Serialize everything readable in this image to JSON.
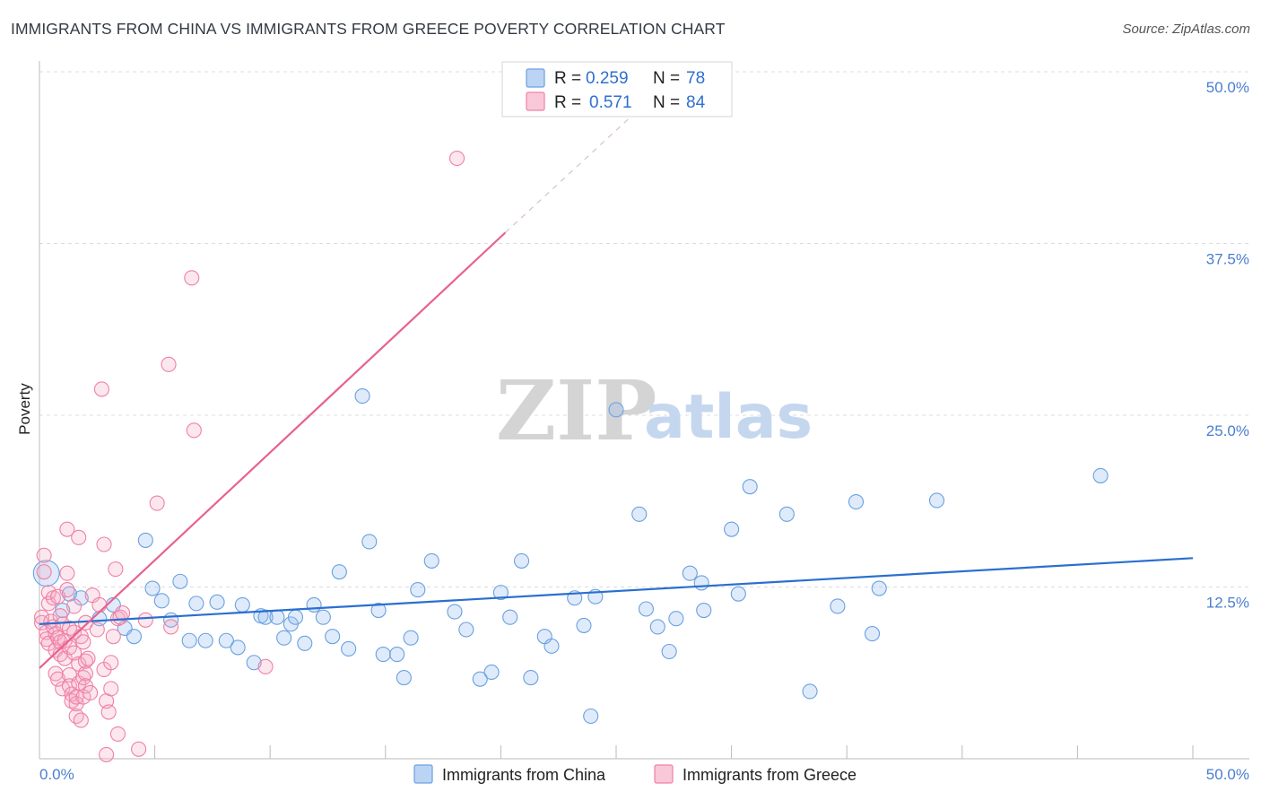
{
  "title": "IMMIGRANTS FROM CHINA VS IMMIGRANTS FROM GREECE POVERTY CORRELATION CHART",
  "source": "Source: ZipAtlas.com",
  "watermark": {
    "zip": "ZIP",
    "atlas": "atlas"
  },
  "colors": {
    "china": "#6aa0e0",
    "china_line": "#2a6fd0",
    "greece": "#f080a4",
    "greece_line": "#e8628c",
    "grid": "#dcdcdc",
    "axis_tick": "#4a7fd0"
  },
  "legend": {
    "r_label": "R =",
    "n_label": "N =",
    "china": {
      "r": "0.259",
      "n": "78"
    },
    "greece": {
      "r": "0.571",
      "n": "84"
    }
  },
  "bottom_legend": {
    "china": "Immigrants from China",
    "greece": "Immigrants from Greece"
  },
  "chart_data": {
    "type": "scatter",
    "title": "IMMIGRANTS FROM CHINA VS IMMIGRANTS FROM GREECE POVERTY CORRELATION CHART",
    "xlabel": "",
    "ylabel": "Poverty",
    "xlim": [
      0,
      50
    ],
    "ylim": [
      0,
      50
    ],
    "x_tick_labels": [
      "0.0%",
      "50.0%"
    ],
    "y_ticks": [
      12.5,
      25.0,
      37.5,
      50.0
    ],
    "y_tick_labels": [
      "12.5%",
      "25.0%",
      "37.5%",
      "50.0%"
    ],
    "series": [
      {
        "name": "Immigrants from China",
        "R": 0.259,
        "N": 78,
        "trend": {
          "x0": 0,
          "y0": 9.8,
          "x1": 50,
          "y1": 14.6
        },
        "points": [
          [
            0.3,
            13.5,
            1.8
          ],
          [
            1.0,
            10.8,
            1
          ],
          [
            1.3,
            12.0,
            1
          ],
          [
            1.8,
            11.7,
            1
          ],
          [
            2.6,
            10.2,
            1
          ],
          [
            3.2,
            11.2,
            1
          ],
          [
            3.7,
            9.5,
            1
          ],
          [
            4.1,
            8.9,
            1
          ],
          [
            4.6,
            15.9,
            1
          ],
          [
            4.9,
            12.4,
            1
          ],
          [
            5.3,
            11.5,
            1
          ],
          [
            5.7,
            10.1,
            1
          ],
          [
            6.1,
            12.9,
            1
          ],
          [
            6.5,
            8.6,
            1
          ],
          [
            6.8,
            11.3,
            1
          ],
          [
            7.2,
            8.6,
            1
          ],
          [
            7.7,
            11.4,
            1
          ],
          [
            8.1,
            8.6,
            1
          ],
          [
            8.6,
            8.1,
            1
          ],
          [
            8.8,
            11.2,
            1
          ],
          [
            9.3,
            7.0,
            1
          ],
          [
            9.6,
            10.4,
            1
          ],
          [
            9.8,
            10.3,
            1
          ],
          [
            10.3,
            10.3,
            1
          ],
          [
            10.6,
            8.8,
            1
          ],
          [
            10.9,
            9.8,
            1
          ],
          [
            11.1,
            10.3,
            1
          ],
          [
            11.5,
            8.4,
            1
          ],
          [
            11.9,
            11.2,
            1
          ],
          [
            12.3,
            10.3,
            1
          ],
          [
            12.7,
            8.9,
            1
          ],
          [
            13.0,
            13.6,
            1
          ],
          [
            13.4,
            8.0,
            1
          ],
          [
            14.0,
            26.4,
            1
          ],
          [
            14.3,
            15.8,
            1
          ],
          [
            14.7,
            10.8,
            1
          ],
          [
            14.9,
            7.6,
            1
          ],
          [
            15.5,
            7.6,
            1
          ],
          [
            15.8,
            5.9,
            1
          ],
          [
            16.1,
            8.8,
            1
          ],
          [
            16.4,
            12.3,
            1
          ],
          [
            17.0,
            14.4,
            1
          ],
          [
            18.0,
            10.7,
            1
          ],
          [
            18.5,
            9.4,
            1
          ],
          [
            19.1,
            5.8,
            1
          ],
          [
            19.6,
            6.3,
            1
          ],
          [
            20.0,
            12.1,
            1
          ],
          [
            20.4,
            10.3,
            1
          ],
          [
            20.9,
            14.4,
            1
          ],
          [
            21.3,
            5.9,
            1
          ],
          [
            21.9,
            8.9,
            1
          ],
          [
            22.2,
            8.2,
            1
          ],
          [
            23.2,
            11.7,
            1
          ],
          [
            23.6,
            9.7,
            1
          ],
          [
            24.1,
            11.8,
            1
          ],
          [
            23.9,
            3.1,
            1
          ],
          [
            25.0,
            25.4,
            1
          ],
          [
            26.0,
            17.8,
            1
          ],
          [
            26.3,
            10.9,
            1
          ],
          [
            26.8,
            9.6,
            1
          ],
          [
            27.3,
            7.8,
            1
          ],
          [
            27.6,
            10.2,
            1
          ],
          [
            28.2,
            13.5,
            1
          ],
          [
            28.7,
            12.8,
            1
          ],
          [
            28.8,
            10.8,
            1
          ],
          [
            30.0,
            16.7,
            1
          ],
          [
            30.3,
            12.0,
            1
          ],
          [
            30.8,
            19.8,
            1
          ],
          [
            32.4,
            17.8,
            1
          ],
          [
            33.4,
            4.9,
            1
          ],
          [
            34.6,
            11.1,
            1
          ],
          [
            35.4,
            18.7,
            1
          ],
          [
            36.1,
            9.1,
            1
          ],
          [
            36.4,
            12.4,
            1
          ],
          [
            38.9,
            18.8,
            1
          ],
          [
            46.0,
            20.6,
            1
          ]
        ]
      },
      {
        "name": "Immigrants from Greece",
        "R": 0.571,
        "N": 84,
        "trend": {
          "x0": 0,
          "y0": 6.6,
          "x1": 20.2,
          "y1": 38.3
        },
        "trend_dashed": {
          "x0": 20.2,
          "y0": 38.3,
          "x1": 26.2,
          "y1": 47.6
        },
        "points": [
          [
            0.1,
            9.9,
            1
          ],
          [
            0.1,
            10.3,
            1
          ],
          [
            0.2,
            13.6,
            1
          ],
          [
            0.2,
            14.8,
            1
          ],
          [
            0.3,
            9.2,
            1
          ],
          [
            0.3,
            8.7,
            1
          ],
          [
            0.4,
            12.1,
            1
          ],
          [
            0.4,
            11.3,
            1
          ],
          [
            0.4,
            8.4,
            1
          ],
          [
            0.5,
            10.0,
            1
          ],
          [
            0.6,
            11.7,
            1
          ],
          [
            0.6,
            9.6,
            1
          ],
          [
            0.7,
            9.1,
            1
          ],
          [
            0.7,
            7.9,
            1
          ],
          [
            0.7,
            6.2,
            1
          ],
          [
            0.8,
            11.8,
            1
          ],
          [
            0.8,
            8.8,
            1
          ],
          [
            0.8,
            5.8,
            1
          ],
          [
            0.9,
            10.4,
            1
          ],
          [
            0.9,
            8.5,
            1
          ],
          [
            0.9,
            7.6,
            1
          ],
          [
            1.0,
            9.8,
            1
          ],
          [
            1.0,
            5.1,
            1
          ],
          [
            1.1,
            8.6,
            1
          ],
          [
            1.1,
            7.3,
            1
          ],
          [
            1.2,
            13.5,
            1
          ],
          [
            1.2,
            12.3,
            1
          ],
          [
            1.2,
            16.7,
            1
          ],
          [
            1.3,
            9.5,
            1
          ],
          [
            1.3,
            8.1,
            1
          ],
          [
            1.3,
            6.1,
            1
          ],
          [
            1.3,
            5.3,
            1
          ],
          [
            1.4,
            4.7,
            1
          ],
          [
            1.4,
            4.2,
            1
          ],
          [
            1.5,
            7.7,
            1
          ],
          [
            1.5,
            9.2,
            1
          ],
          [
            1.5,
            11.1,
            1
          ],
          [
            1.6,
            4.0,
            1
          ],
          [
            1.6,
            4.5,
            1
          ],
          [
            1.6,
            3.1,
            1
          ],
          [
            1.7,
            6.9,
            1
          ],
          [
            1.7,
            5.5,
            1
          ],
          [
            1.7,
            16.1,
            1
          ],
          [
            1.8,
            8.9,
            1
          ],
          [
            1.8,
            2.8,
            1
          ],
          [
            1.9,
            5.9,
            1
          ],
          [
            1.9,
            4.5,
            1
          ],
          [
            1.9,
            8.5,
            1
          ],
          [
            2.0,
            6.2,
            1
          ],
          [
            2.0,
            5.3,
            1
          ],
          [
            2.0,
            7.1,
            1
          ],
          [
            2.0,
            9.9,
            1
          ],
          [
            2.1,
            7.3,
            1
          ],
          [
            2.2,
            4.8,
            1
          ],
          [
            2.3,
            11.9,
            1
          ],
          [
            2.5,
            9.4,
            1
          ],
          [
            2.6,
            11.2,
            1
          ],
          [
            2.7,
            26.9,
            1
          ],
          [
            2.8,
            6.5,
            1
          ],
          [
            2.8,
            15.6,
            1
          ],
          [
            2.9,
            4.2,
            1
          ],
          [
            2.9,
            0.3,
            1
          ],
          [
            3.0,
            3.4,
            1
          ],
          [
            3.1,
            7.0,
            1
          ],
          [
            3.1,
            5.1,
            1
          ],
          [
            3.2,
            8.9,
            1
          ],
          [
            3.4,
            10.2,
            1
          ],
          [
            3.3,
            13.8,
            1
          ],
          [
            3.4,
            1.8,
            1
          ],
          [
            3.5,
            10.3,
            1
          ],
          [
            3.6,
            10.6,
            1
          ],
          [
            4.3,
            0.7,
            1
          ],
          [
            4.6,
            10.1,
            1
          ],
          [
            5.1,
            18.6,
            1
          ],
          [
            5.6,
            28.7,
            1
          ],
          [
            5.7,
            9.6,
            1
          ],
          [
            6.6,
            35.0,
            1
          ],
          [
            6.7,
            23.9,
            1
          ],
          [
            9.8,
            6.7,
            1
          ],
          [
            18.1,
            43.7,
            1
          ]
        ]
      }
    ]
  }
}
